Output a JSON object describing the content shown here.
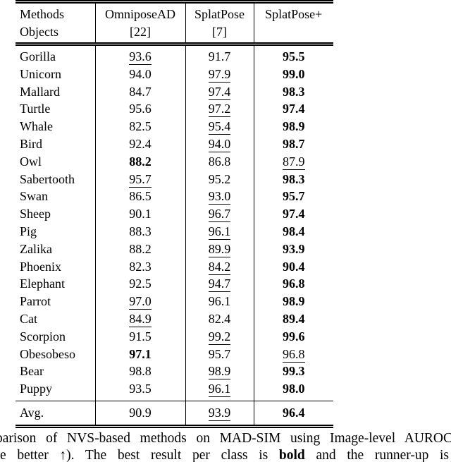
{
  "page": {
    "background": "#ffffff",
    "text_color": "#000000",
    "rule_color": "#000000"
  },
  "table": {
    "header": {
      "row_label_line1": "Methods",
      "row_label_line2": "Objects",
      "columns": [
        {
          "line1": "OmniposeAD",
          "line2": "[22]"
        },
        {
          "line1": "SplatPose",
          "line2": "[7]"
        },
        {
          "line1": "SplatPose+",
          "line2": ""
        }
      ]
    },
    "rows": [
      {
        "object": "Gorilla",
        "values": [
          "93.6",
          "91.7",
          "95.5"
        ],
        "styles": [
          "underline",
          "normal",
          "bold"
        ]
      },
      {
        "object": "Unicorn",
        "values": [
          "94.0",
          "97.9",
          "99.0"
        ],
        "styles": [
          "normal",
          "underline",
          "bold"
        ]
      },
      {
        "object": "Mallard",
        "values": [
          "84.7",
          "97.4",
          "98.3"
        ],
        "styles": [
          "normal",
          "underline",
          "bold"
        ]
      },
      {
        "object": "Turtle",
        "values": [
          "95.6",
          "97.2",
          "97.4"
        ],
        "styles": [
          "normal",
          "underline",
          "bold"
        ]
      },
      {
        "object": "Whale",
        "values": [
          "82.5",
          "95.4",
          "98.9"
        ],
        "styles": [
          "normal",
          "underline",
          "bold"
        ]
      },
      {
        "object": "Bird",
        "values": [
          "92.4",
          "94.0",
          "98.7"
        ],
        "styles": [
          "normal",
          "underline",
          "bold"
        ]
      },
      {
        "object": "Owl",
        "values": [
          "88.2",
          "86.8",
          "87.9"
        ],
        "styles": [
          "bold",
          "normal",
          "underline"
        ]
      },
      {
        "object": "Sabertooth",
        "values": [
          "95.7",
          "95.2",
          "98.3"
        ],
        "styles": [
          "underline",
          "normal",
          "bold"
        ]
      },
      {
        "object": "Swan",
        "values": [
          "86.5",
          "93.0",
          "95.7"
        ],
        "styles": [
          "normal",
          "underline",
          "bold"
        ]
      },
      {
        "object": "Sheep",
        "values": [
          "90.1",
          "96.7",
          "97.4"
        ],
        "styles": [
          "normal",
          "underline",
          "bold"
        ]
      },
      {
        "object": "Pig",
        "values": [
          "88.3",
          "96.1",
          "98.4"
        ],
        "styles": [
          "normal",
          "underline",
          "bold"
        ]
      },
      {
        "object": "Zalika",
        "values": [
          "88.2",
          "89.9",
          "93.9"
        ],
        "styles": [
          "normal",
          "underline",
          "bold"
        ]
      },
      {
        "object": "Phoenix",
        "values": [
          "82.3",
          "84.2",
          "90.4"
        ],
        "styles": [
          "normal",
          "underline",
          "bold"
        ]
      },
      {
        "object": "Elephant",
        "values": [
          "92.5",
          "94.7",
          "96.8"
        ],
        "styles": [
          "normal",
          "underline",
          "bold"
        ]
      },
      {
        "object": "Parrot",
        "values": [
          "97.0",
          "96.1",
          "98.9"
        ],
        "styles": [
          "underline",
          "normal",
          "bold"
        ]
      },
      {
        "object": "Cat",
        "values": [
          "84.9",
          "82.4",
          "89.4"
        ],
        "styles": [
          "underline",
          "normal",
          "bold"
        ]
      },
      {
        "object": "Scorpion",
        "values": [
          "91.5",
          "99.2",
          "99.6"
        ],
        "styles": [
          "normal",
          "underline",
          "bold"
        ]
      },
      {
        "object": "Obesobeso",
        "values": [
          "97.1",
          "95.7",
          "96.8"
        ],
        "styles": [
          "bold",
          "normal",
          "underline"
        ]
      },
      {
        "object": "Bear",
        "values": [
          "98.8",
          "98.9",
          "99.3"
        ],
        "styles": [
          "normal",
          "underline",
          "bold"
        ]
      },
      {
        "object": "Puppy",
        "values": [
          "93.5",
          "96.1",
          "98.0"
        ],
        "styles": [
          "normal",
          "underline",
          "bold"
        ]
      }
    ],
    "avg_row": {
      "label": "Avg.",
      "values": [
        "90.9",
        "93.9",
        "96.4"
      ],
      "styles": [
        "normal",
        "underline",
        "bold"
      ]
    }
  },
  "caption": {
    "line1": "parison of NVS-based methods on MAD-SIM using Image-level AUROC",
    "line2_prefix": "e better ↑). The best result per class is",
    "line2_bold": "bold",
    "line2_suffix": "and the runner-up is"
  }
}
